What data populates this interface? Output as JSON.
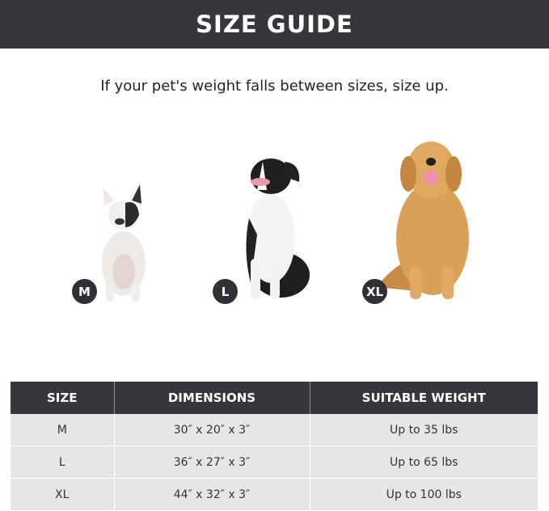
{
  "header": {
    "title": "SIZE GUIDE"
  },
  "subtitle": "If your pet's weight falls between sizes, size up.",
  "dogs": [
    {
      "badge": "M",
      "breed_icon": "french-bulldog"
    },
    {
      "badge": "L",
      "breed_icon": "border-collie"
    },
    {
      "badge": "XL",
      "breed_icon": "golden-retriever"
    }
  ],
  "table": {
    "headers": [
      "SIZE",
      "DIMENSIONS",
      "SUITABLE WEIGHT"
    ],
    "rows": [
      [
        "M",
        "30″ x 20″ x 3″",
        "Up to 35 lbs"
      ],
      [
        "L",
        "36″ x 27″ x 3″",
        "Up to 65 lbs"
      ],
      [
        "XL",
        "44″ x 32″ x 3″",
        "Up to 100 lbs"
      ]
    ]
  },
  "colors": {
    "banner": "#35373d",
    "row": "#e6e6e6",
    "badge": "#2f3136"
  }
}
